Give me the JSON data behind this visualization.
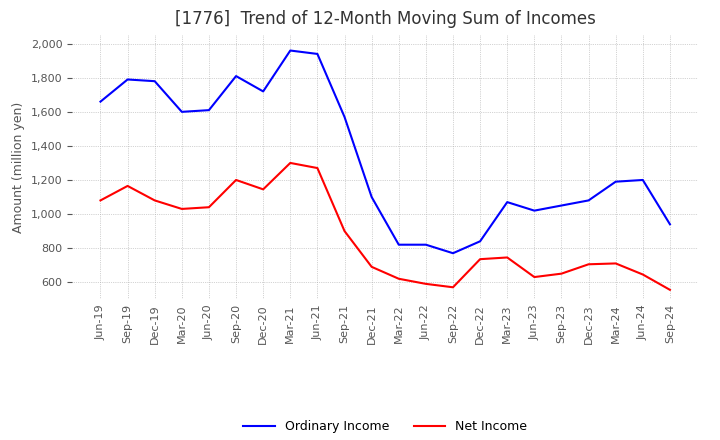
{
  "title": "[1776]  Trend of 12-Month Moving Sum of Incomes",
  "ylabel": "Amount (million yen)",
  "ylim": [
    500,
    2050
  ],
  "yticks": [
    600,
    800,
    1000,
    1200,
    1400,
    1600,
    1800,
    2000
  ],
  "x_labels": [
    "Jun-19",
    "Sep-19",
    "Dec-19",
    "Mar-20",
    "Jun-20",
    "Sep-20",
    "Dec-20",
    "Mar-21",
    "Jun-21",
    "Sep-21",
    "Dec-21",
    "Mar-22",
    "Jun-22",
    "Sep-22",
    "Dec-22",
    "Mar-23",
    "Jun-23",
    "Sep-23",
    "Dec-23",
    "Mar-24",
    "Jun-24",
    "Sep-24"
  ],
  "ordinary_income": [
    1660,
    1790,
    1780,
    1600,
    1610,
    1810,
    1720,
    1960,
    1940,
    1570,
    1100,
    820,
    820,
    770,
    840,
    1070,
    1020,
    1050,
    1080,
    1190,
    1200,
    940
  ],
  "net_income": [
    1080,
    1165,
    1080,
    1030,
    1040,
    1200,
    1145,
    1300,
    1270,
    900,
    690,
    620,
    590,
    570,
    735,
    745,
    630,
    650,
    705,
    710,
    645,
    555
  ],
  "ordinary_income_color": "#0000ff",
  "net_income_color": "#ff0000",
  "line_width": 1.5,
  "title_fontsize": 12,
  "label_fontsize": 9,
  "tick_fontsize": 8,
  "legend_fontsize": 9,
  "background_color": "#ffffff",
  "grid_color": "#aaaaaa"
}
